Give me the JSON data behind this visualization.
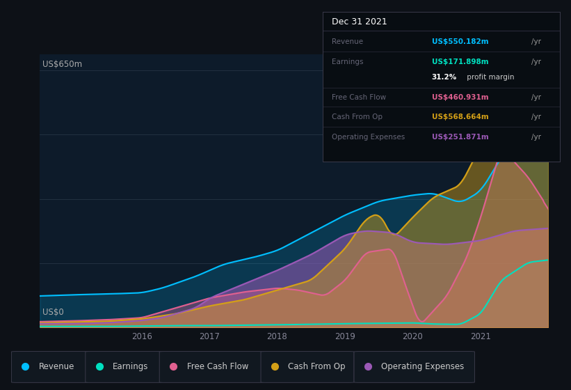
{
  "bg_color": "#0d1117",
  "plot_bg_color": "#0d1b2a",
  "title_box": {
    "date": "Dec 31 2021",
    "rows": [
      {
        "label": "Revenue",
        "value": "US$550.182m",
        "suffix": "/yr",
        "value_color": "#00bfff"
      },
      {
        "label": "Earnings",
        "value": "US$171.898m",
        "suffix": "/yr",
        "value_color": "#00e0c0"
      },
      {
        "label": "",
        "value": "31.2%",
        "suffix": " profit margin",
        "value_color": "#ffffff"
      },
      {
        "label": "Free Cash Flow",
        "value": "US$460.931m",
        "suffix": "/yr",
        "value_color": "#e06090"
      },
      {
        "label": "Cash From Op",
        "value": "US$568.664m",
        "suffix": "/yr",
        "value_color": "#d4a017"
      },
      {
        "label": "Operating Expenses",
        "value": "US$251.871m",
        "suffix": "/yr",
        "value_color": "#9b59b6"
      }
    ]
  },
  "y_label_top": "US$650m",
  "y_label_bottom": "US$0",
  "x_ticks": [
    2016,
    2017,
    2018,
    2019,
    2020,
    2021
  ],
  "x_tick_labels": [
    "2016",
    "2017",
    "2018",
    "2019",
    "2020",
    "2021"
  ],
  "xlim": [
    2014.5,
    2022.0
  ],
  "ylim": [
    0,
    690
  ],
  "grid_lines": [
    0,
    162.5,
    325,
    487.5,
    650
  ],
  "series_colors": {
    "revenue": "#00bfff",
    "earnings": "#00e0c0",
    "free_cash_flow": "#e06090",
    "cash_from_op": "#d4a017",
    "operating_expenses": "#9b59b6"
  },
  "legend_items": [
    {
      "label": "Revenue",
      "color": "#00bfff"
    },
    {
      "label": "Earnings",
      "color": "#00e0c0"
    },
    {
      "label": "Free Cash Flow",
      "color": "#e06090"
    },
    {
      "label": "Cash From Op",
      "color": "#d4a017"
    },
    {
      "label": "Operating Expenses",
      "color": "#9b59b6"
    }
  ]
}
